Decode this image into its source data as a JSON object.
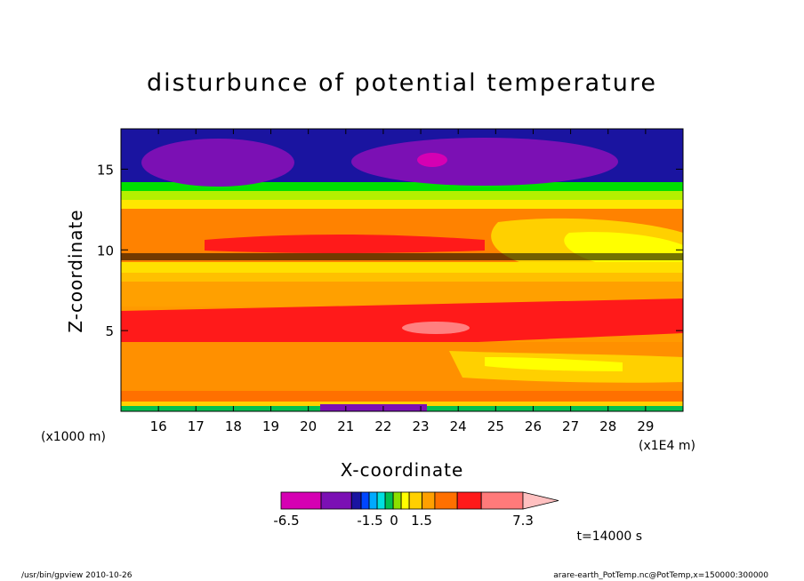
{
  "chart_data": {
    "type": "heatmap",
    "title": "disturbunce of potential temperature",
    "xlabel": "X-coordinate",
    "ylabel": "Z-coordinate",
    "x_unit_note": "(x1E4 m)",
    "y_unit_note": "(x1000 m)",
    "xlim": [
      15,
      30
    ],
    "ylim": [
      0,
      17.5
    ],
    "x_ticks": [
      "16",
      "17",
      "18",
      "19",
      "20",
      "21",
      "22",
      "23",
      "24",
      "25",
      "26",
      "27",
      "28",
      "29"
    ],
    "y_ticks": [
      "5",
      "10",
      "15"
    ],
    "colorbar": {
      "labels": [
        "-6.5",
        "-1.5",
        "0",
        "1.5",
        "7.3"
      ],
      "colors": [
        "#d500b3",
        "#7b10b4",
        "#1a14a0",
        "#0046ff",
        "#00aaff",
        "#00e0e0",
        "#00c050",
        "#8ce000",
        "#ffff00",
        "#ffd000",
        "#ffa000",
        "#ff7000",
        "#ff1a1a",
        "#ff7a7a",
        "#ffc0c0"
      ]
    },
    "annotation_time": "t=14000 s",
    "grid": false
  },
  "footer": {
    "left": "/usr/bin/gpview   2010-10-26",
    "right": "arare-earth_PotTemp.nc@PotTemp,x=150000:300000"
  }
}
